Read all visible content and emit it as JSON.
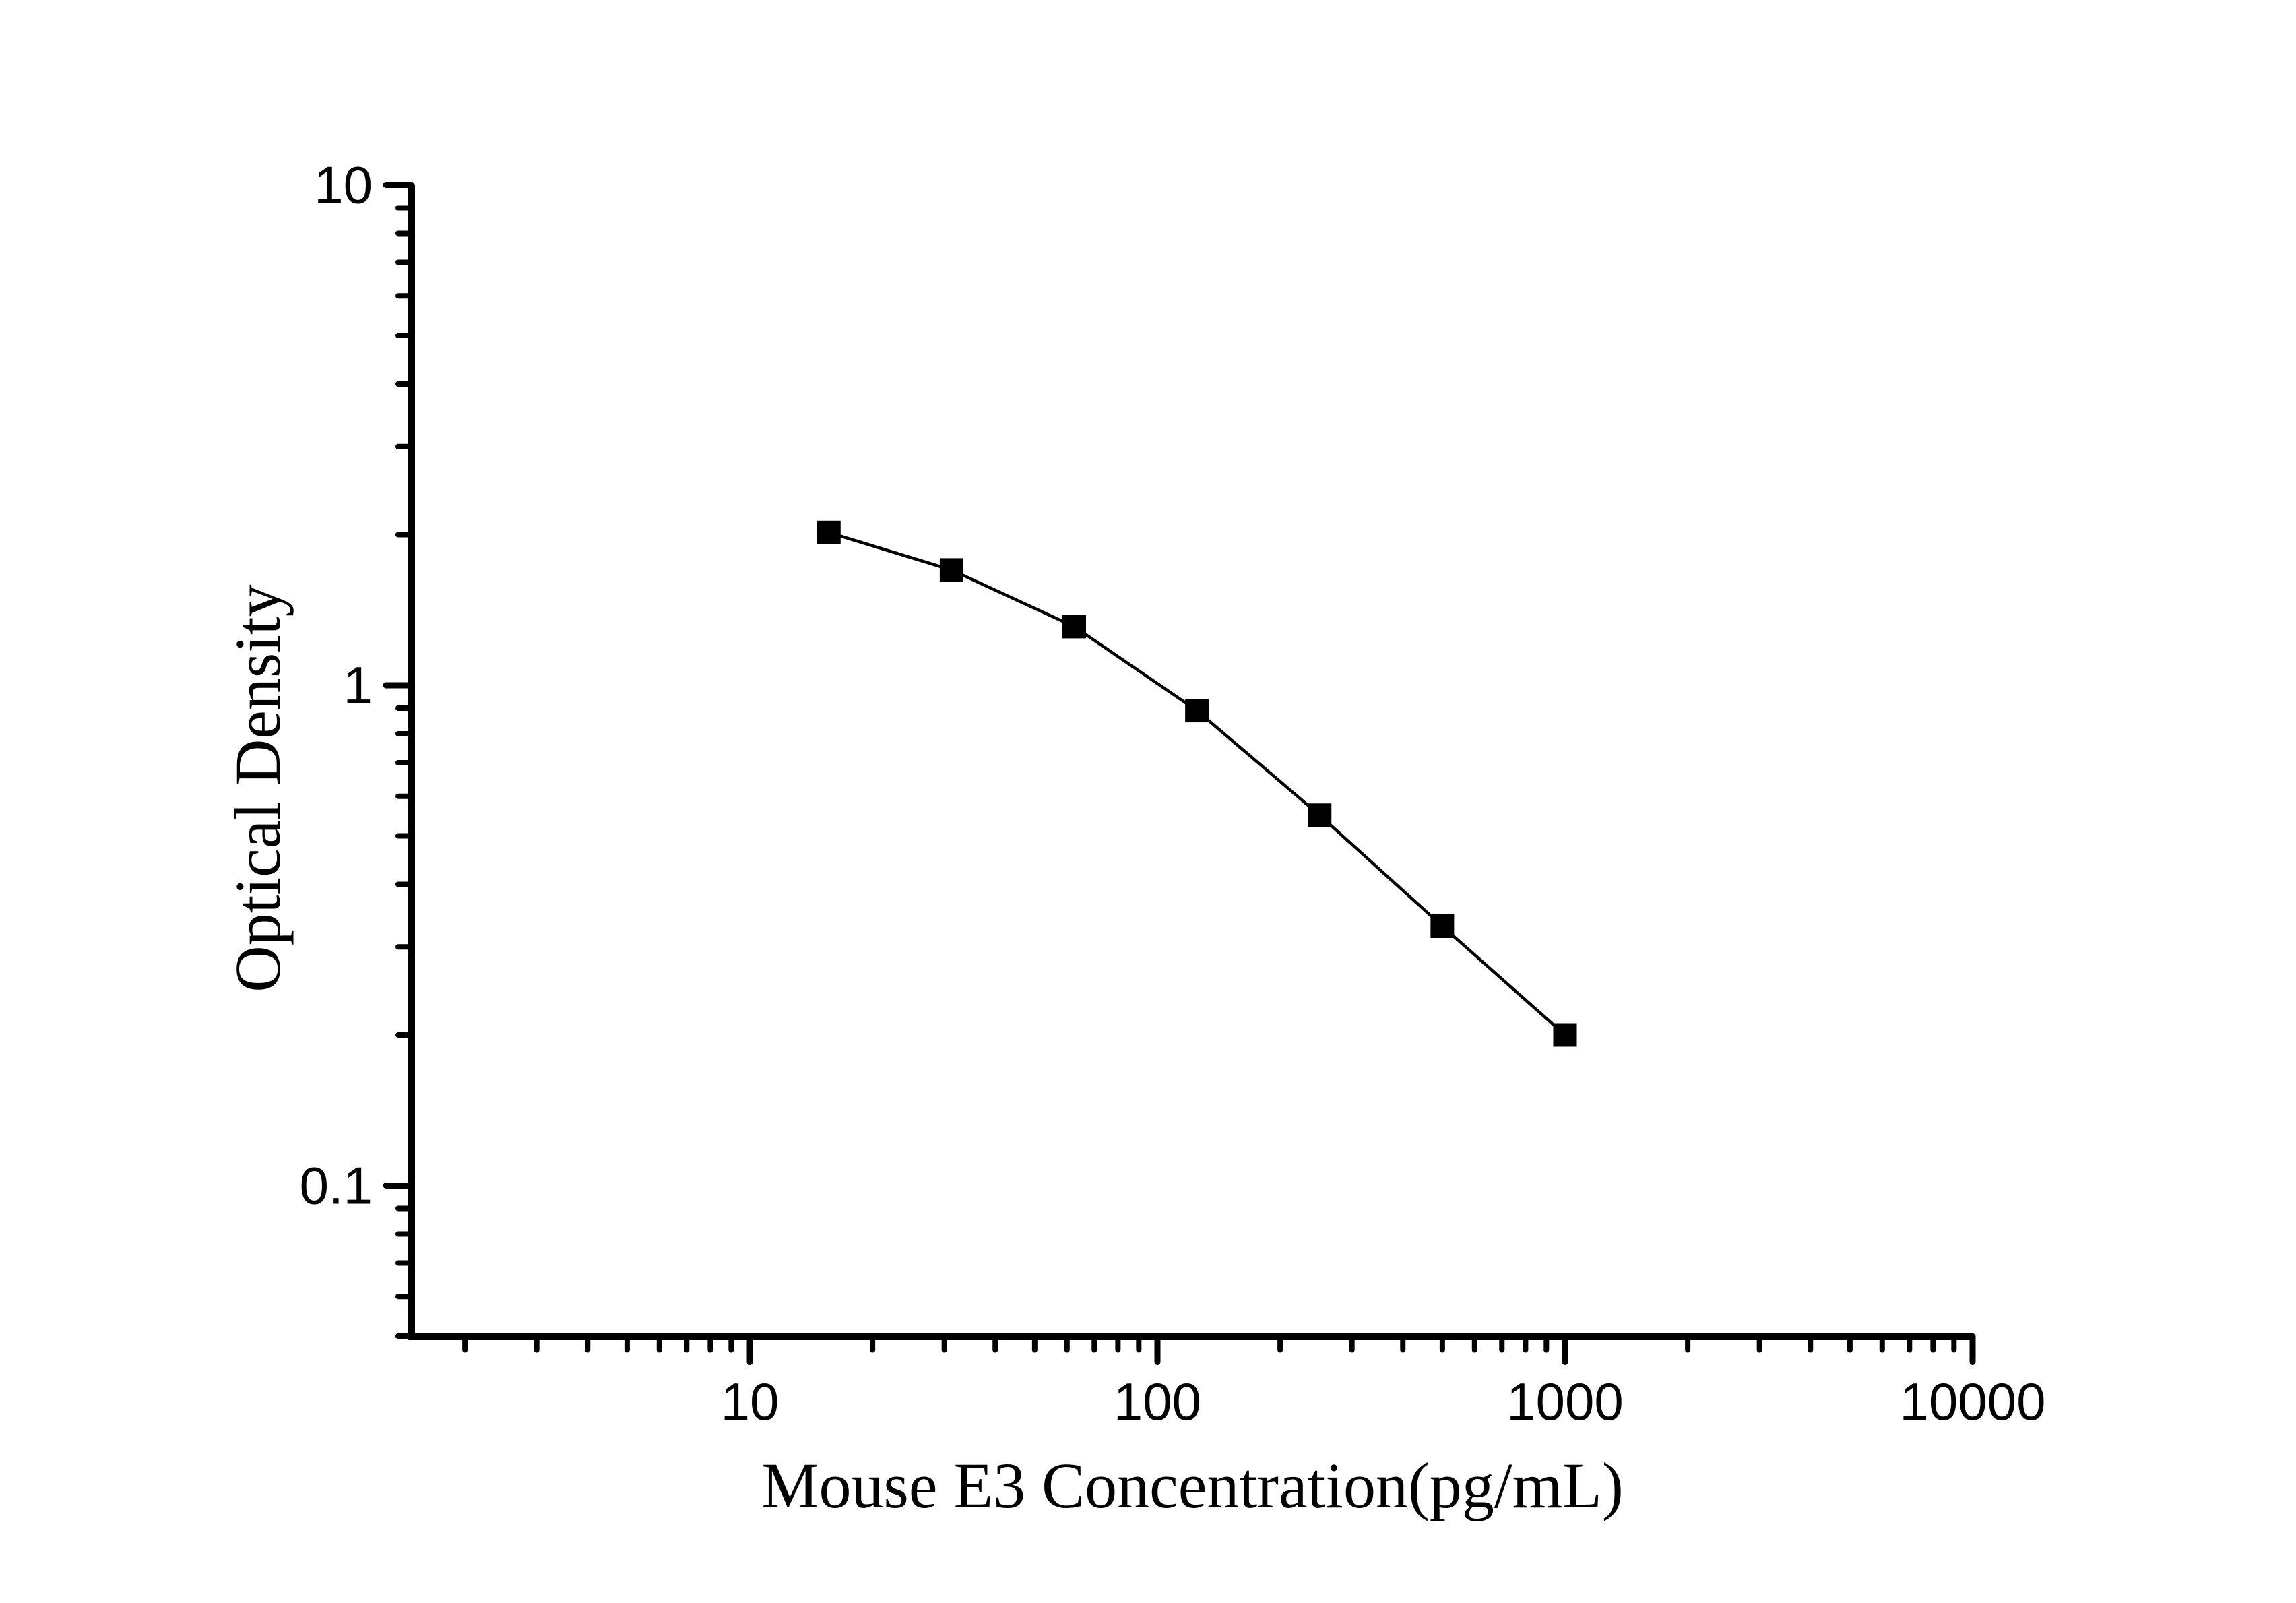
{
  "page": {
    "background_color": "#ffffff",
    "foreground_color": "#000000"
  },
  "chart_data": {
    "type": "line",
    "subtype": "scatter-line-standard-curve",
    "title": "",
    "xlabel": "Mouse E3 Concentration(pg/mL)",
    "ylabel": "Optical Density",
    "x_scale": "log",
    "y_scale": "log",
    "xlim": [
      1.5,
      10000
    ],
    "ylim": [
      0.05,
      10
    ],
    "grid": false,
    "legend": "none",
    "axis_color": "#000000",
    "x_major_ticks": [
      10,
      100,
      1000,
      10000
    ],
    "x_major_tick_labels": [
      "10",
      "100",
      "1000",
      "10000"
    ],
    "y_major_ticks": [
      10,
      1,
      0.1
    ],
    "y_major_tick_labels": [
      "10",
      "1",
      "0.1"
    ],
    "minor_ticks": "log-mantissa-2-to-9",
    "tick_direction": "out",
    "series": [
      {
        "name": "standard-curve",
        "marker": "filled-square",
        "line_style": "solid",
        "color": "#000000",
        "points": [
          {
            "x": 15.625,
            "y": 2.02
          },
          {
            "x": 31.25,
            "y": 1.7
          },
          {
            "x": 62.5,
            "y": 1.31
          },
          {
            "x": 125,
            "y": 0.89
          },
          {
            "x": 250,
            "y": 0.55
          },
          {
            "x": 500,
            "y": 0.33
          },
          {
            "x": 1000,
            "y": 0.2
          }
        ]
      }
    ]
  }
}
